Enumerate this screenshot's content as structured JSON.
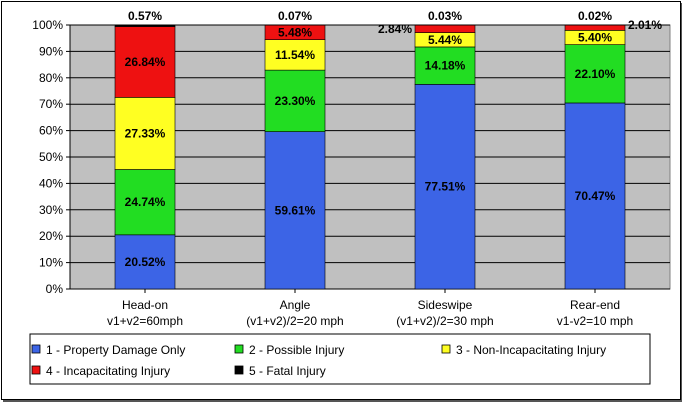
{
  "chart_data": {
    "type": "bar",
    "stacked": true,
    "percent": true,
    "ylim": [
      0,
      100
    ],
    "yticks": [
      "0%",
      "10%",
      "20%",
      "30%",
      "40%",
      "50%",
      "60%",
      "70%",
      "80%",
      "90%",
      "100%"
    ],
    "grid": true,
    "legend_placement": "bottom",
    "categories": [
      [
        "Head-on",
        "v1+v2=60mph"
      ],
      [
        "Angle",
        "(v1+v2)/2=20 mph"
      ],
      [
        "Sideswipe",
        "(v1+v2)/2=30 mph"
      ],
      [
        "Rear-end",
        "v1-v2=10 mph"
      ]
    ],
    "series": [
      {
        "name": "1 - Property Damage Only",
        "color": "#3c64e6",
        "values": [
          20.52,
          59.61,
          77.51,
          70.47
        ],
        "labels": [
          "20.52%",
          "59.61%",
          "77.51%",
          "70.47%"
        ]
      },
      {
        "name": "2 - Possible Injury",
        "color": "#22dd22",
        "values": [
          24.74,
          23.3,
          14.18,
          22.1
        ],
        "labels": [
          "24.74%",
          "23.30%",
          "14.18%",
          "22.10%"
        ]
      },
      {
        "name": "3 - Non-Incapacitating Injury",
        "color": "#ffff22",
        "values": [
          27.33,
          11.54,
          5.44,
          5.4
        ],
        "labels": [
          "27.33%",
          "11.54%",
          "5.44%",
          "5.40%"
        ]
      },
      {
        "name": "4 - Incapacitating Injury",
        "color": "#ee1111",
        "values": [
          26.84,
          5.48,
          2.84,
          2.01
        ],
        "labels": [
          "26.84%",
          "5.48%",
          "2.84%",
          "2.01%"
        ]
      },
      {
        "name": "5 - Fatal Injury",
        "color": "#000000",
        "values": [
          0.57,
          0.07,
          0.03,
          0.02
        ],
        "labels": [
          "0.57%",
          "0.07%",
          "0.03%",
          "0.02%"
        ]
      }
    ],
    "colors": {
      "plot_area": "#c0c0c0",
      "grid": "#000000"
    }
  }
}
